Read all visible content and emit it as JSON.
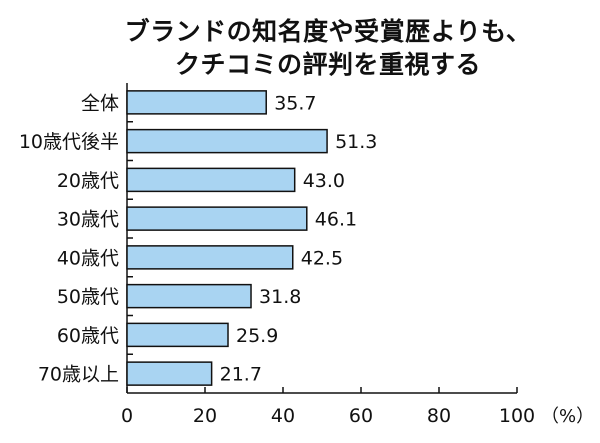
{
  "chart_data": {
    "type": "bar",
    "orientation": "horizontal",
    "title_lines": [
      "ブランドの知名度や受賞歴よりも、",
      "クチコミの評判を重視する"
    ],
    "categories": [
      "全体",
      "10歳代後半",
      "20歳代",
      "30歳代",
      "40歳代",
      "50歳代",
      "60歳代",
      "70歳以上"
    ],
    "values": [
      35.7,
      51.3,
      43.0,
      46.1,
      42.5,
      31.8,
      25.9,
      21.7
    ],
    "value_labels": [
      "35.7",
      "51.3",
      "43.0",
      "46.1",
      "42.5",
      "31.8",
      "25.9",
      "21.7"
    ],
    "xlim": [
      0,
      100
    ],
    "xticks": [
      0,
      20,
      40,
      60,
      80,
      100
    ],
    "tick_labels": [
      "0",
      "20",
      "40",
      "60",
      "80",
      "100"
    ],
    "unit_label": "（%）",
    "grid": false,
    "bar_color": "#a9d4f2",
    "bar_edge_color": "#111111"
  }
}
